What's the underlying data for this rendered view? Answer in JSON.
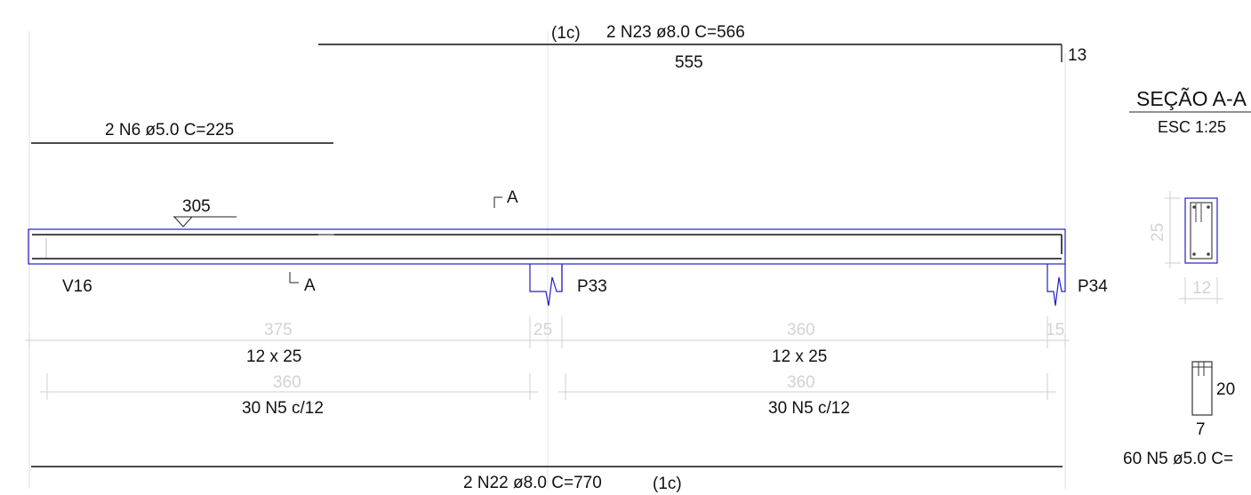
{
  "colors": {
    "background": "#ffffff",
    "rebar": "#4a4a4a",
    "outline": "#1e1ec8",
    "text": "#111111",
    "dimension": "#cfcfcf",
    "gridline": "#dedede"
  },
  "top_bar": {
    "tag": "(1c)",
    "callout": "2 N23 ø8.0  C=566",
    "length": "555",
    "hook": "13"
  },
  "short_bar": {
    "callout": "2 N6 ø5.0  C=225"
  },
  "level_mark": {
    "value": "305"
  },
  "section_cut": {
    "top_mark": "A",
    "bottom_mark": "A"
  },
  "beam": {
    "name": "V16"
  },
  "supports": [
    {
      "name": "P33"
    },
    {
      "name": "P34"
    }
  ],
  "spans": [
    {
      "clear_span": "375",
      "section": "12 x 25",
      "stirrup_span": "360",
      "stirrups": "30 N5 c/12"
    },
    {
      "clear_span": "360",
      "section": "12 x 25",
      "stirrup_span": "360",
      "stirrups": "30 N5 c/12"
    }
  ],
  "support_widths": [
    "25",
    "15"
  ],
  "bottom_bar": {
    "callout": "2 N22 ø8.0  C=770",
    "tag": "(1c)"
  },
  "section_view": {
    "title": "SEÇÃO A-A",
    "scale": "ESC 1:25",
    "height": "25",
    "width": "12"
  },
  "stirrup_detail": {
    "height": "20",
    "width": "7",
    "callout": "60 N5 ø5.0  C="
  }
}
